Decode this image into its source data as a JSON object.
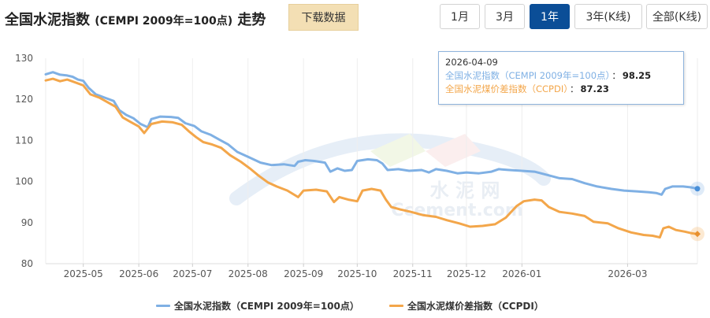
{
  "header": {
    "title": "全国水泥指数",
    "title_paren": "(CEMPI 2009年=100点)",
    "title_suffix": "走势",
    "download_label": "下载数据"
  },
  "range_buttons": [
    {
      "label": "1月",
      "active": false
    },
    {
      "label": "3月",
      "active": false
    },
    {
      "label": "1年",
      "active": true
    },
    {
      "label": "3年(K线)",
      "active": false
    },
    {
      "label": "全部(K线)",
      "active": false
    }
  ],
  "tooltip": {
    "date": "2026-04-09",
    "series1_label": "全国水泥指数（CEMPI 2009年=100点）",
    "series1_value": "98.25",
    "series2_label": "全国水泥煤价差指数（CCPDI）",
    "series2_value": "87.23",
    "separator": "："
  },
  "watermark": {
    "line1": "水 泥 网",
    "line2": "Ccement.com"
  },
  "legend": {
    "item1": "全国水泥指数（CEMPI 2009年=100点）",
    "item2": "全国水泥煤价差指数（CCPDI）"
  },
  "colors": {
    "cempi": "#7fb0e4",
    "ccpdi": "#f3a64a",
    "active_button": "#0b4e97",
    "download_button": "#f3dfb4"
  },
  "chart_data": {
    "type": "line",
    "x_range": [
      "2025-04-10",
      "2026-04-09"
    ],
    "ylim": [
      80,
      130
    ],
    "yticks": [
      80,
      90,
      100,
      110,
      120,
      130
    ],
    "xticks": [
      {
        "label": "2025-05",
        "date": "2025-05-01"
      },
      {
        "label": "2025-06",
        "date": "2025-06-01"
      },
      {
        "label": "2025-07",
        "date": "2025-07-01"
      },
      {
        "label": "2025-08",
        "date": "2025-08-01"
      },
      {
        "label": "2025-09",
        "date": "2025-09-01"
      },
      {
        "label": "2025-10",
        "date": "2025-10-01"
      },
      {
        "label": "2025-11",
        "date": "2025-11-01"
      },
      {
        "label": "2025-12",
        "date": "2025-12-01"
      },
      {
        "label": "2026-01",
        "date": "2026-01-01"
      },
      {
        "label": "2026-03",
        "date": "2026-03-01"
      }
    ],
    "grid": "vertical",
    "legend_position": "bottom",
    "series": [
      {
        "name": "全国水泥指数（CEMPI 2009年=100点）",
        "points": [
          [
            "2025-04-10",
            126.1
          ],
          [
            "2025-04-14",
            126.6
          ],
          [
            "2025-04-18",
            126.0
          ],
          [
            "2025-04-22",
            125.8
          ],
          [
            "2025-04-25",
            125.5
          ],
          [
            "2025-04-28",
            124.8
          ],
          [
            "2025-05-01",
            124.5
          ],
          [
            "2025-05-04",
            122.8
          ],
          [
            "2025-05-08",
            121.2
          ],
          [
            "2025-05-13",
            120.4
          ],
          [
            "2025-05-18",
            119.6
          ],
          [
            "2025-05-21",
            117.4
          ],
          [
            "2025-05-25",
            116.2
          ],
          [
            "2025-05-29",
            115.4
          ],
          [
            "2025-06-02",
            114.0
          ],
          [
            "2025-06-06",
            113.2
          ],
          [
            "2025-06-08",
            115.2
          ],
          [
            "2025-06-13",
            115.8
          ],
          [
            "2025-06-19",
            115.7
          ],
          [
            "2025-06-23",
            115.5
          ],
          [
            "2025-06-27",
            114.2
          ],
          [
            "2025-07-02",
            113.5
          ],
          [
            "2025-07-06",
            112.2
          ],
          [
            "2025-07-11",
            111.4
          ],
          [
            "2025-07-16",
            110.2
          ],
          [
            "2025-07-21",
            109.0
          ],
          [
            "2025-07-26",
            107.2
          ],
          [
            "2025-08-02",
            105.8
          ],
          [
            "2025-08-08",
            104.6
          ],
          [
            "2025-08-14",
            104.0
          ],
          [
            "2025-08-21",
            104.2
          ],
          [
            "2025-08-27",
            103.8
          ],
          [
            "2025-08-29",
            104.8
          ],
          [
            "2025-09-02",
            105.2
          ],
          [
            "2025-09-07",
            105.0
          ],
          [
            "2025-09-13",
            104.6
          ],
          [
            "2025-09-16",
            102.4
          ],
          [
            "2025-09-20",
            103.2
          ],
          [
            "2025-09-24",
            102.6
          ],
          [
            "2025-09-28",
            102.8
          ],
          [
            "2025-10-01",
            105.0
          ],
          [
            "2025-10-07",
            105.4
          ],
          [
            "2025-10-12",
            105.2
          ],
          [
            "2025-10-15",
            104.4
          ],
          [
            "2025-10-18",
            102.8
          ],
          [
            "2025-10-24",
            103.0
          ],
          [
            "2025-10-30",
            102.6
          ],
          [
            "2025-11-06",
            102.8
          ],
          [
            "2025-11-10",
            102.2
          ],
          [
            "2025-11-14",
            103.0
          ],
          [
            "2025-11-20",
            102.6
          ],
          [
            "2025-11-26",
            102.0
          ],
          [
            "2025-12-01",
            102.2
          ],
          [
            "2025-12-08",
            102.0
          ],
          [
            "2025-12-15",
            102.4
          ],
          [
            "2025-12-19",
            103.0
          ],
          [
            "2025-12-25",
            102.8
          ],
          [
            "2026-01-01",
            102.6
          ],
          [
            "2026-01-08",
            102.4
          ],
          [
            "2026-01-15",
            101.6
          ],
          [
            "2026-01-22",
            100.8
          ],
          [
            "2026-01-29",
            100.6
          ],
          [
            "2026-02-05",
            99.6
          ],
          [
            "2026-02-12",
            98.8
          ],
          [
            "2026-02-20",
            98.2
          ],
          [
            "2026-02-27",
            97.8
          ],
          [
            "2026-03-06",
            97.6
          ],
          [
            "2026-03-13",
            97.4
          ],
          [
            "2026-03-17",
            97.2
          ],
          [
            "2026-03-20",
            96.8
          ],
          [
            "2026-03-22",
            98.2
          ],
          [
            "2026-03-26",
            98.8
          ],
          [
            "2026-04-01",
            98.8
          ],
          [
            "2026-04-05",
            98.6
          ],
          [
            "2026-04-09",
            98.25
          ]
        ]
      },
      {
        "name": "全国水泥煤价差指数（CCPDI）",
        "points": [
          [
            "2025-04-10",
            124.6
          ],
          [
            "2025-04-14",
            125.0
          ],
          [
            "2025-04-18",
            124.4
          ],
          [
            "2025-04-22",
            124.8
          ],
          [
            "2025-04-26",
            124.2
          ],
          [
            "2025-05-01",
            123.4
          ],
          [
            "2025-05-05",
            121.2
          ],
          [
            "2025-05-10",
            120.4
          ],
          [
            "2025-05-15",
            119.2
          ],
          [
            "2025-05-19",
            118.2
          ],
          [
            "2025-05-23",
            115.6
          ],
          [
            "2025-05-27",
            114.6
          ],
          [
            "2025-06-01",
            113.4
          ],
          [
            "2025-06-04",
            111.8
          ],
          [
            "2025-06-08",
            114.0
          ],
          [
            "2025-06-14",
            114.6
          ],
          [
            "2025-06-20",
            114.4
          ],
          [
            "2025-06-25",
            113.8
          ],
          [
            "2025-06-29",
            112.2
          ],
          [
            "2025-07-03",
            110.8
          ],
          [
            "2025-07-07",
            109.6
          ],
          [
            "2025-07-12",
            109.0
          ],
          [
            "2025-07-17",
            108.2
          ],
          [
            "2025-07-22",
            106.4
          ],
          [
            "2025-07-28",
            104.8
          ],
          [
            "2025-08-02",
            103.2
          ],
          [
            "2025-08-07",
            101.4
          ],
          [
            "2025-08-12",
            99.8
          ],
          [
            "2025-08-17",
            98.8
          ],
          [
            "2025-08-23",
            97.8
          ],
          [
            "2025-08-29",
            96.2
          ],
          [
            "2025-09-01",
            97.8
          ],
          [
            "2025-09-08",
            98.0
          ],
          [
            "2025-09-14",
            97.6
          ],
          [
            "2025-09-18",
            95.0
          ],
          [
            "2025-09-21",
            96.2
          ],
          [
            "2025-09-26",
            95.6
          ],
          [
            "2025-10-01",
            95.2
          ],
          [
            "2025-10-04",
            97.8
          ],
          [
            "2025-10-09",
            98.2
          ],
          [
            "2025-10-14",
            97.8
          ],
          [
            "2025-10-17",
            95.6
          ],
          [
            "2025-10-20",
            93.8
          ],
          [
            "2025-10-25",
            93.2
          ],
          [
            "2025-10-31",
            92.6
          ],
          [
            "2025-11-07",
            91.8
          ],
          [
            "2025-11-14",
            91.4
          ],
          [
            "2025-11-20",
            90.6
          ],
          [
            "2025-11-27",
            89.8
          ],
          [
            "2025-12-03",
            89.0
          ],
          [
            "2025-12-10",
            89.2
          ],
          [
            "2025-12-17",
            89.6
          ],
          [
            "2025-12-23",
            91.2
          ],
          [
            "2025-12-29",
            94.0
          ],
          [
            "2026-01-02",
            95.2
          ],
          [
            "2026-01-08",
            95.6
          ],
          [
            "2026-01-12",
            95.4
          ],
          [
            "2026-01-16",
            93.8
          ],
          [
            "2026-01-22",
            92.6
          ],
          [
            "2026-01-29",
            92.2
          ],
          [
            "2026-02-05",
            91.6
          ],
          [
            "2026-02-10",
            90.2
          ],
          [
            "2026-02-18",
            89.8
          ],
          [
            "2026-02-24",
            88.6
          ],
          [
            "2026-03-03",
            87.6
          ],
          [
            "2026-03-10",
            87.0
          ],
          [
            "2026-03-15",
            86.8
          ],
          [
            "2026-03-19",
            86.4
          ],
          [
            "2026-03-21",
            88.6
          ],
          [
            "2026-03-24",
            89.0
          ],
          [
            "2026-03-28",
            88.2
          ],
          [
            "2026-04-02",
            87.8
          ],
          [
            "2026-04-06",
            87.4
          ],
          [
            "2026-04-09",
            87.23
          ]
        ]
      }
    ]
  }
}
